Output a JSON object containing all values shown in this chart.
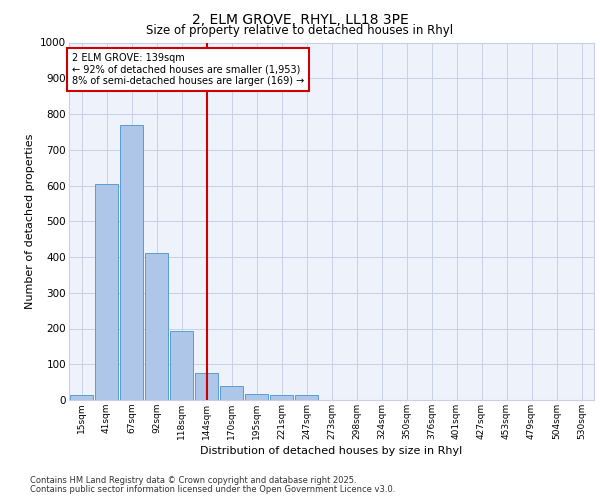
{
  "title_line1": "2, ELM GROVE, RHYL, LL18 3PE",
  "title_line2": "Size of property relative to detached houses in Rhyl",
  "xlabel": "Distribution of detached houses by size in Rhyl",
  "ylabel": "Number of detached properties",
  "categories": [
    "15sqm",
    "41sqm",
    "67sqm",
    "92sqm",
    "118sqm",
    "144sqm",
    "170sqm",
    "195sqm",
    "221sqm",
    "247sqm",
    "273sqm",
    "298sqm",
    "324sqm",
    "350sqm",
    "376sqm",
    "401sqm",
    "427sqm",
    "453sqm",
    "479sqm",
    "504sqm",
    "530sqm"
  ],
  "values": [
    15,
    605,
    770,
    412,
    192,
    75,
    38,
    18,
    13,
    13,
    0,
    0,
    0,
    0,
    0,
    0,
    0,
    0,
    0,
    0,
    0
  ],
  "bar_color": "#aec6e8",
  "bar_edge_color": "#5b9bd5",
  "annotation_line1": "2 ELM GROVE: 139sqm",
  "annotation_line2": "← 92% of detached houses are smaller (1,953)",
  "annotation_line3": "8% of semi-detached houses are larger (169) →",
  "vline_color": "#cc0000",
  "annotation_box_color": "#cc0000",
  "ylim": [
    0,
    1000
  ],
  "yticks": [
    0,
    100,
    200,
    300,
    400,
    500,
    600,
    700,
    800,
    900,
    1000
  ],
  "bg_color": "#eef2fb",
  "grid_color": "#c8d0e8",
  "footer_line1": "Contains HM Land Registry data © Crown copyright and database right 2025.",
  "footer_line2": "Contains public sector information licensed under the Open Government Licence v3.0.",
  "vline_bin_index": 5,
  "vline_x": 5.0
}
